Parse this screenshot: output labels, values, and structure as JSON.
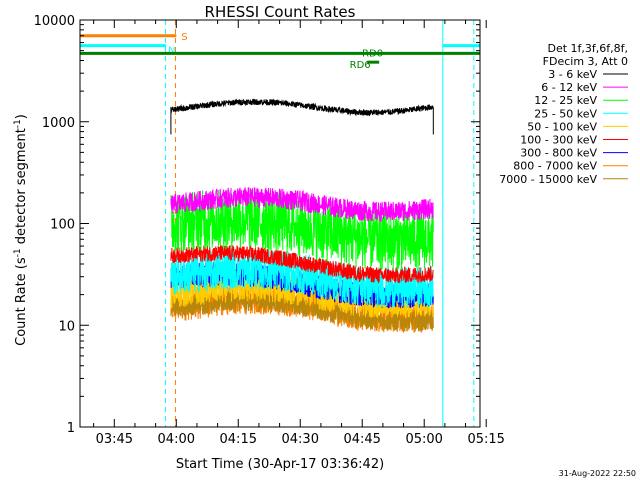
{
  "chart_data": {
    "type": "line",
    "title": "RHESSI Count Rates",
    "xlabel": "Start Time (30-Apr-17 03:36:42)",
    "ylabel_parts": [
      "Count Rate (s",
      "-1",
      " detector segment",
      "-1",
      ")"
    ],
    "footer": "31-Aug-2022 22:50",
    "yscale": "log",
    "ylim": [
      1,
      10000
    ],
    "xlim_min": [
      36.7,
      133.5
    ],
    "x_ticks": [
      {
        "t": 45,
        "label": "03:45"
      },
      {
        "t": 60,
        "label": "04:00"
      },
      {
        "t": 75,
        "label": "04:15"
      },
      {
        "t": 90,
        "label": "04:30"
      },
      {
        "t": 105,
        "label": "04:45"
      },
      {
        "t": 120,
        "label": "05:00"
      },
      {
        "t": 135,
        "label": "05:15"
      }
    ],
    "y_ticks": [
      {
        "v": 1,
        "label": "1"
      },
      {
        "v": 10,
        "label": "10"
      },
      {
        "v": 100,
        "label": "100"
      },
      {
        "v": 1000,
        "label": "1000"
      },
      {
        "v": 10000,
        "label": "10000"
      }
    ],
    "legend_header": [
      "Det 1f,3f,6f,8f,",
      "FDecim 3, Att 0"
    ],
    "data_start_min": 58.7,
    "data_end_min": 122.2,
    "series": [
      {
        "name": "3 - 6 keV",
        "color": "#000000",
        "start": 1400,
        "mid": 1400,
        "end": 1400,
        "noise": 0.03
      },
      {
        "name": "6 - 12 keV",
        "color": "#ff00ff",
        "start": 165,
        "mid": 160,
        "end": 140,
        "noise": 0.1
      },
      {
        "name": "12 - 25 keV",
        "color": "#00ff00",
        "start": 110,
        "mid": 90,
        "end": 70,
        "noise": 0.3
      },
      {
        "name": "25 - 50 keV",
        "color": "#00ffff",
        "start": 33,
        "mid": 31,
        "end": 24,
        "noise": 0.2
      },
      {
        "name": "50 - 100 keV",
        "color": "#ffcc00",
        "start": 22,
        "mid": 21,
        "end": 17,
        "noise": 0.15
      },
      {
        "name": "100 - 300 keV",
        "color": "#ff0000",
        "start": 52,
        "mid": 40,
        "end": 32,
        "noise": 0.08
      },
      {
        "name": "300 - 800 keV",
        "color": "#0000ff",
        "start": 32,
        "mid": 25,
        "end": 20,
        "noise": 0.12
      },
      {
        "name": "800 - 7000 keV",
        "color": "#ff8000",
        "start": 16,
        "mid": 16,
        "end": 12,
        "noise": 0.15
      },
      {
        "name": "7000 - 15000 keV",
        "color": "#b8860b",
        "start": 16,
        "mid": 15,
        "end": 11,
        "noise": 0.1
      }
    ],
    "annotations": {
      "saa": {
        "label": "S",
        "start": 36.7,
        "end": 60.0,
        "value": 7000,
        "color": "#ff8000"
      },
      "night": {
        "label": "N",
        "color": "#00ffff",
        "value": 5600,
        "segments": [
          [
            36.7,
            57.5
          ],
          [
            124.5,
            133.5
          ]
        ]
      },
      "rd_line": {
        "value": 4700,
        "color": "#008000",
        "start": 36.7,
        "end": 133.5
      },
      "rd_labels": [
        {
          "label": "RD6",
          "t": 104.5,
          "value": 3700
        },
        {
          "label": "RD0",
          "t": 107.5,
          "value": 4800
        }
      ],
      "rd_short": {
        "start": 106.2,
        "end": 109.1,
        "value": 3850
      },
      "cyan_vlines_solid": [
        36.7,
        124.5
      ],
      "cyan_vlines_dashed": [
        57.4,
        132.0
      ],
      "orange_vline_dashed": 59.8
    }
  }
}
